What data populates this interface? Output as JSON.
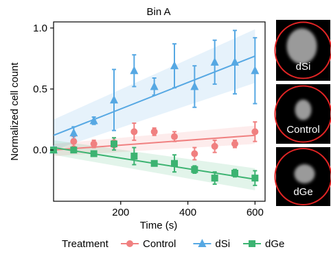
{
  "chart_data": {
    "type": "scatter",
    "title": "Bin A",
    "xlabel": "Time (s)",
    "ylabel": "Normalized cell count",
    "xlim": [
      0,
      630
    ],
    "ylim": [
      -0.42,
      1.05
    ],
    "xticks": [
      200,
      400,
      600
    ],
    "yticks": [
      0.0,
      0.5,
      1.0
    ],
    "ytick_labels": [
      "0.0",
      "0.5",
      "1.0"
    ],
    "grid": false,
    "legend_title": "Treatment",
    "legend_position": "bottom",
    "series": [
      {
        "name": "Control",
        "color": "#F08080",
        "marker": "circle",
        "x": [
          0,
          60,
          120,
          180,
          240,
          300,
          360,
          420,
          480,
          540,
          600
        ],
        "y": [
          0.0,
          0.07,
          0.05,
          0.06,
          0.15,
          0.15,
          0.11,
          -0.03,
          0.03,
          0.05,
          0.15
        ],
        "err": [
          0,
          0.04,
          0.03,
          0.04,
          0.07,
          0.03,
          0.04,
          0.05,
          0.05,
          0.03,
          0.08
        ],
        "fit": {
          "x0": 0,
          "y0": 0.0,
          "x1": 600,
          "y1": 0.12
        },
        "band": {
          "lo0": -0.05,
          "hi0": 0.05,
          "lo1": 0.05,
          "hi1": 0.2
        }
      },
      {
        "name": "dSi",
        "color": "#56A8E3",
        "marker": "triangle",
        "x": [
          0,
          60,
          120,
          180,
          240,
          300,
          360,
          420,
          480,
          540,
          600
        ],
        "y": [
          0.0,
          0.14,
          0.24,
          0.41,
          0.65,
          0.52,
          0.69,
          0.52,
          0.72,
          0.72,
          0.65
        ],
        "err": [
          0,
          0.05,
          0.03,
          0.25,
          0.13,
          0.07,
          0.18,
          0.17,
          0.18,
          0.26,
          0.27
        ],
        "fit": {
          "x0": 0,
          "y0": 0.12,
          "x1": 600,
          "y1": 0.77
        },
        "band": {
          "lo0": 0.0,
          "hi0": 0.25,
          "lo1": 0.55,
          "hi1": 0.99
        }
      },
      {
        "name": "dGe",
        "color": "#3CB371",
        "marker": "square",
        "x": [
          0,
          60,
          120,
          180,
          240,
          300,
          360,
          420,
          480,
          540,
          600
        ],
        "y": [
          0.0,
          0.0,
          -0.03,
          0.05,
          -0.05,
          -0.11,
          -0.11,
          -0.16,
          -0.23,
          -0.19,
          -0.23
        ],
        "err": [
          0,
          0.01,
          0.02,
          0.05,
          0.07,
          0.02,
          0.07,
          0.03,
          0.05,
          0.03,
          0.06
        ],
        "fit": {
          "x0": 0,
          "y0": 0.02,
          "x1": 600,
          "y1": -0.24
        },
        "band": {
          "lo0": -0.04,
          "hi0": 0.08,
          "lo1": -0.33,
          "hi1": -0.15
        }
      }
    ]
  },
  "panels": [
    {
      "label": "dSi"
    },
    {
      "label": "Control"
    },
    {
      "label": "dGe"
    }
  ],
  "colors": {
    "panel_bg": "#000000",
    "circle_outline": "#E02424",
    "cell_fill": "#9a9a9a",
    "band_alpha": "0.15"
  }
}
